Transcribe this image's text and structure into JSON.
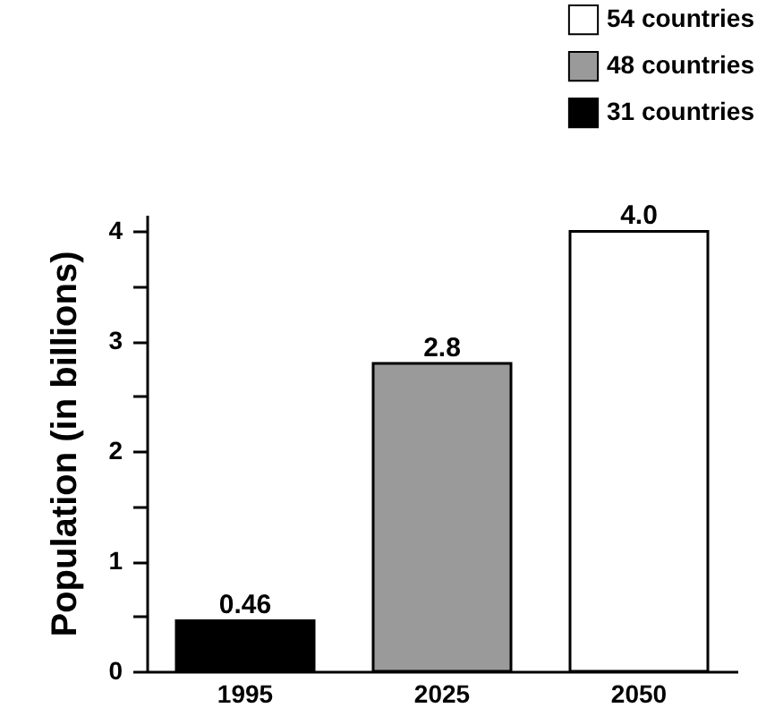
{
  "chart_data": {
    "type": "bar",
    "ylabel": "Population (in billions)",
    "categories": [
      "1995",
      "2025",
      "2050"
    ],
    "series": [
      {
        "name": "54 countries",
        "color": "#ffffff",
        "values": [
          null,
          null,
          4.0
        ],
        "value_labels": [
          null,
          null,
          "4.0"
        ]
      },
      {
        "name": "48 countries",
        "color": "#9a9a9a",
        "values": [
          null,
          2.8,
          null
        ],
        "value_labels": [
          null,
          "2.8",
          null
        ]
      },
      {
        "name": "31 countries",
        "color": "#000000",
        "values": [
          0.46,
          null,
          null
        ],
        "value_labels": [
          "0.46",
          null,
          null
        ]
      }
    ],
    "ylim": [
      0,
      4.15
    ],
    "yticks": [
      0,
      {
        "value": 0.5,
        "label": null
      },
      1,
      {
        "value": 1.5,
        "label": null
      },
      2,
      {
        "value": 2.5,
        "label": null
      },
      3,
      {
        "value": 3.5,
        "label": null
      },
      4
    ],
    "grid": false,
    "legend": "top right"
  }
}
